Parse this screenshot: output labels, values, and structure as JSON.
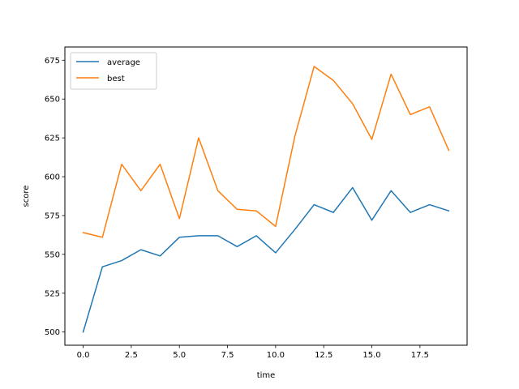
{
  "chart_data": {
    "type": "line",
    "xlabel": "time",
    "ylabel": "score",
    "xlim": [
      -0.95,
      19.95
    ],
    "ylim": [
      491.5,
      683.5
    ],
    "xticks": [
      0.0,
      2.5,
      5.0,
      7.5,
      10.0,
      12.5,
      15.0,
      17.5
    ],
    "xtick_labels": [
      "0.0",
      "2.5",
      "5.0",
      "7.5",
      "10.0",
      "12.5",
      "15.0",
      "17.5"
    ],
    "yticks": [
      500,
      525,
      550,
      575,
      600,
      625,
      650,
      675
    ],
    "ytick_labels": [
      "500",
      "525",
      "550",
      "575",
      "600",
      "625",
      "650",
      "675"
    ],
    "grid": false,
    "legend_position": "upper-left",
    "x": [
      0,
      1,
      2,
      3,
      4,
      5,
      6,
      7,
      8,
      9,
      10,
      11,
      12,
      13,
      14,
      15,
      16,
      17,
      18,
      19
    ],
    "series": [
      {
        "name": "average",
        "color": "#1f77b4",
        "values": [
          500,
          542,
          546,
          553,
          549,
          561,
          562,
          562,
          555,
          562,
          551,
          566,
          582,
          577,
          593,
          572,
          591,
          577,
          582,
          578
        ]
      },
      {
        "name": "best",
        "color": "#ff7f0e",
        "values": [
          564,
          561,
          608,
          591,
          608,
          573,
          625,
          591,
          579,
          578,
          568,
          626,
          671,
          662,
          647,
          624,
          666,
          640,
          645,
          617
        ]
      }
    ]
  }
}
